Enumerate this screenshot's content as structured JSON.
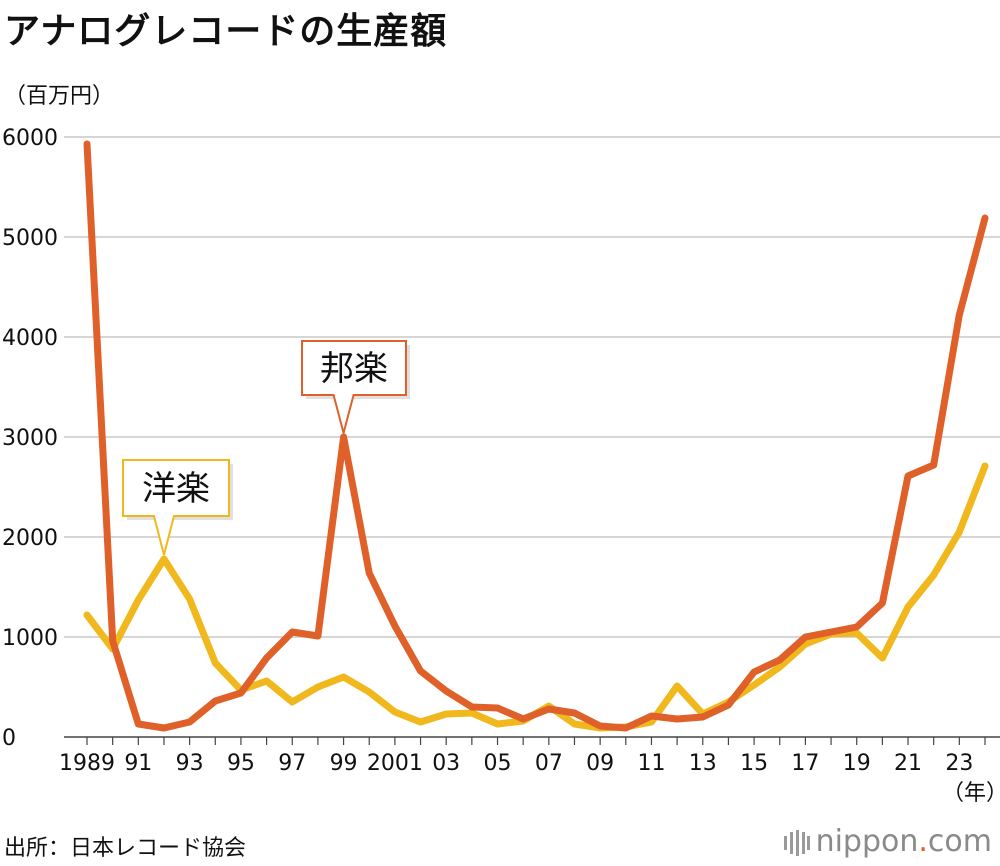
{
  "title": "アナログレコードの生産額",
  "unit_label": "（百万円）",
  "source": "出所：日本レコード協会",
  "brand": {
    "prefix": "nippon",
    "dot": ".",
    "suffix": "com"
  },
  "chart_data": {
    "type": "line",
    "title": "アナログレコードの生産額",
    "ylabel": "（百万円）",
    "xlabel": "（年）",
    "ylim": [
      0,
      6000
    ],
    "yticks": [
      "0",
      "1000",
      "2000",
      "3000",
      "4000",
      "5000",
      "6000"
    ],
    "x": [
      1989,
      1990,
      1991,
      1992,
      1993,
      1994,
      1995,
      1996,
      1997,
      1998,
      1999,
      2000,
      2001,
      2002,
      2003,
      2004,
      2005,
      2006,
      2007,
      2008,
      2009,
      2010,
      2011,
      2012,
      2013,
      2014,
      2015,
      2016,
      2017,
      2018,
      2019,
      2020,
      2021,
      2022,
      2023,
      2024
    ],
    "xtick_labels": [
      {
        "year": 1989,
        "label": "1989"
      },
      {
        "year": 1991,
        "label": "91"
      },
      {
        "year": 1993,
        "label": "93"
      },
      {
        "year": 1995,
        "label": "95"
      },
      {
        "year": 1997,
        "label": "97"
      },
      {
        "year": 1999,
        "label": "99"
      },
      {
        "year": 2001,
        "label": "2001"
      },
      {
        "year": 2003,
        "label": "03"
      },
      {
        "year": 2005,
        "label": "05"
      },
      {
        "year": 2007,
        "label": "07"
      },
      {
        "year": 2009,
        "label": "09"
      },
      {
        "year": 2011,
        "label": "11"
      },
      {
        "year": 2013,
        "label": "13"
      },
      {
        "year": 2015,
        "label": "15"
      },
      {
        "year": 2017,
        "label": "17"
      },
      {
        "year": 2019,
        "label": "19"
      },
      {
        "year": 2021,
        "label": "21"
      },
      {
        "year": 2023,
        "label": "23"
      }
    ],
    "series": [
      {
        "name": "洋楽",
        "color": "#f0b81c",
        "values": [
          1220,
          880,
          1370,
          1780,
          1380,
          740,
          470,
          560,
          350,
          500,
          600,
          450,
          250,
          150,
          230,
          240,
          130,
          160,
          310,
          130,
          90,
          100,
          150,
          510,
          230,
          350,
          520,
          700,
          930,
          1030,
          1040,
          790,
          1300,
          1620,
          2050,
          2710
        ]
      },
      {
        "name": "邦楽",
        "color": "#e0602a",
        "values": [
          5930,
          960,
          130,
          90,
          150,
          360,
          440,
          790,
          1050,
          1010,
          3000,
          1640,
          1110,
          660,
          460,
          300,
          290,
          180,
          280,
          240,
          110,
          90,
          210,
          180,
          200,
          320,
          650,
          770,
          1000,
          1050,
          1100,
          1340,
          2610,
          2720,
          4220,
          5190
        ]
      }
    ],
    "annotations": [
      {
        "series": "邦楽",
        "text": "邦楽",
        "year": 1999
      },
      {
        "series": "洋楽",
        "text": "洋楽",
        "year": 1992
      }
    ]
  }
}
